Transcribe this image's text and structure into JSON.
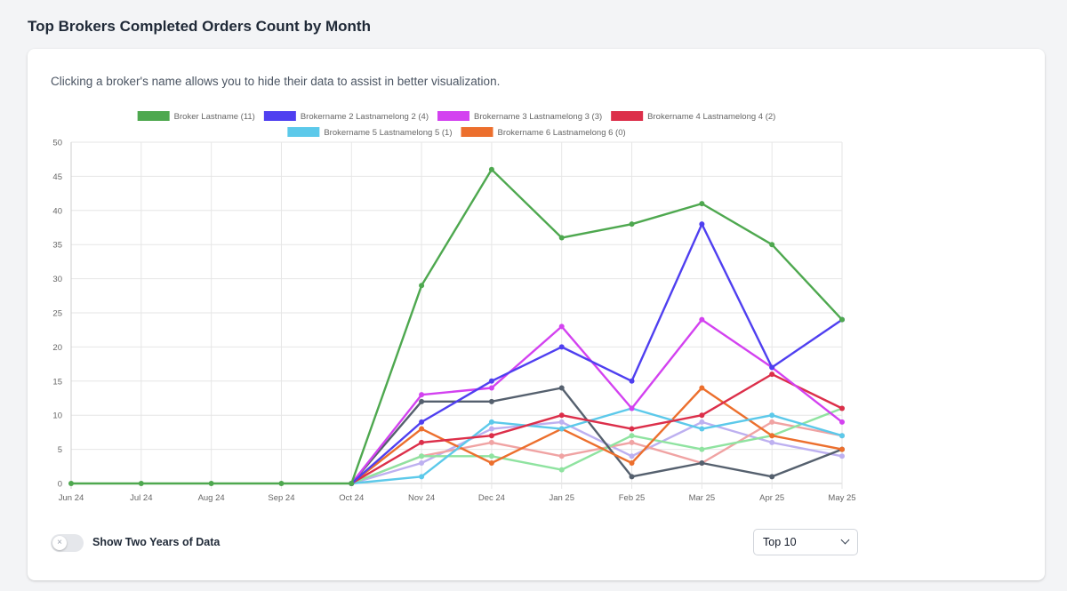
{
  "page": {
    "title": "Top Brokers Completed Orders Count by Month"
  },
  "card": {
    "hint": "Clicking a broker's name allows you to hide their data to assist in better visualization."
  },
  "controls": {
    "toggle_label": "Show Two Years of Data",
    "toggle_on": false,
    "toggle_icon": "×",
    "select_value": "Top 10"
  },
  "chart_data": {
    "type": "line",
    "title": "",
    "xlabel": "",
    "ylabel": "",
    "ylim": [
      0,
      50
    ],
    "yticks": [
      0,
      5,
      10,
      15,
      20,
      25,
      30,
      35,
      40,
      45,
      50
    ],
    "grid": true,
    "legend_position": "top-center",
    "categories": [
      "Jun 24",
      "Jul 24",
      "Aug 24",
      "Sep 24",
      "Oct 24",
      "Nov 24",
      "Dec 24",
      "Jan 25",
      "Feb 25",
      "Mar 25",
      "Apr 25",
      "May 25"
    ],
    "series": [
      {
        "name": "Broker Lastname (11)",
        "color": "#4ea84f",
        "in_legend": true,
        "values": [
          0,
          0,
          0,
          0,
          0,
          29,
          46,
          36,
          38,
          41,
          35,
          24
        ]
      },
      {
        "name": "Brokername 2 Lastnamelong 2 (4)",
        "color": "#4f3ff0",
        "in_legend": true,
        "values": [
          null,
          null,
          null,
          null,
          0,
          9,
          15,
          20,
          15,
          38,
          17,
          24
        ]
      },
      {
        "name": "Brokername 3 Lastnamelong 3 (3)",
        "color": "#d342f0",
        "in_legend": true,
        "values": [
          null,
          null,
          null,
          null,
          0,
          13,
          14,
          23,
          11,
          24,
          17,
          9
        ]
      },
      {
        "name": "Brokername 4 Lastnamelong 4 (2)",
        "color": "#dc2f4a",
        "in_legend": true,
        "values": [
          null,
          null,
          null,
          null,
          0,
          6,
          7,
          10,
          8,
          10,
          16,
          11
        ]
      },
      {
        "name": "Brokername 5 Lastnamelong 5 (1)",
        "color": "#5cc9ea",
        "in_legend": true,
        "values": [
          null,
          null,
          null,
          null,
          0,
          1,
          9,
          8,
          11,
          8,
          10,
          7
        ]
      },
      {
        "name": "Brokername 6 Lastnamelong 6 (0)",
        "color": "#ec6f2d",
        "in_legend": true,
        "values": [
          null,
          null,
          null,
          null,
          0,
          8,
          3,
          8,
          3,
          14,
          7,
          5
        ]
      },
      {
        "name": "",
        "color": "#55606e",
        "in_legend": false,
        "values": [
          null,
          null,
          null,
          null,
          0,
          12,
          12,
          14,
          1,
          3,
          1,
          5
        ]
      },
      {
        "name": "",
        "color": "#8fe3a0",
        "in_legend": false,
        "values": [
          null,
          null,
          null,
          null,
          0,
          4,
          4,
          2,
          7,
          5,
          7,
          11
        ]
      },
      {
        "name": "",
        "color": "#f0a3a3",
        "in_legend": false,
        "values": [
          null,
          null,
          null,
          null,
          0,
          4,
          6,
          4,
          6,
          3,
          9,
          7
        ]
      },
      {
        "name": "",
        "color": "#bdb0f0",
        "in_legend": false,
        "values": [
          null,
          null,
          null,
          null,
          0,
          3,
          8,
          9,
          4,
          9,
          6,
          4
        ]
      }
    ]
  }
}
